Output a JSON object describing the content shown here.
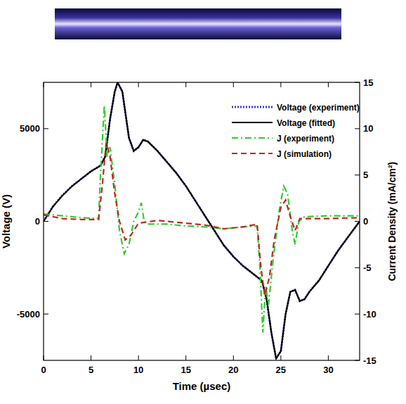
{
  "chart_data": {
    "type": "line",
    "x_label": "Time (µsec)",
    "y_label": "Voltage (V)",
    "y2_label": "Current Density (mA/cm²)",
    "xlim": [
      0,
      33.3
    ],
    "xticks": [
      0,
      5,
      10,
      15,
      20,
      25,
      30
    ],
    "ylim": [
      -7500,
      7500
    ],
    "yticks": [
      -5000,
      0,
      5000
    ],
    "y2lim": [
      -15,
      15
    ],
    "y2ticks": [
      -15,
      -10,
      -5,
      0,
      5,
      10,
      15
    ],
    "legend": "upper right",
    "series": [
      {
        "name": "Voltage (experiment)",
        "color": "#3b3bd6",
        "line_style": "dotted",
        "x": [
          0,
          1,
          2,
          3,
          4,
          5,
          6,
          6.5,
          7,
          7.5,
          7.8,
          8.3,
          9,
          9.5,
          10,
          10.5,
          11,
          12,
          13,
          14,
          15,
          16,
          17,
          18,
          19,
          20,
          21,
          22,
          23,
          23.5,
          24,
          24.5,
          25,
          25.5,
          26,
          26.5,
          27,
          27.5,
          28,
          29,
          30,
          31,
          32,
          33.3
        ],
        "values": [
          0,
          820,
          1420,
          1900,
          2300,
          2700,
          3020,
          3500,
          5500,
          7000,
          7500,
          7000,
          4500,
          3800,
          4000,
          4400,
          4300,
          3800,
          3200,
          2600,
          1900,
          1100,
          300,
          -500,
          -1300,
          -1900,
          -2400,
          -2800,
          -3200,
          -4200,
          -6000,
          -7400,
          -7000,
          -5000,
          -3800,
          -3700,
          -4300,
          -4200,
          -3800,
          -3200,
          -2400,
          -1600,
          -900,
          0
        ]
      },
      {
        "name": "Voltage (fitted)",
        "color": "#000000",
        "line_style": "solid",
        "x": [
          0,
          1,
          2,
          3,
          4,
          5,
          6,
          6.5,
          7,
          7.5,
          7.8,
          8.3,
          9,
          9.5,
          10,
          10.5,
          11,
          12,
          13,
          14,
          15,
          16,
          17,
          18,
          19,
          20,
          21,
          22,
          23,
          23.5,
          24,
          24.5,
          25,
          25.5,
          26,
          26.5,
          27,
          27.5,
          28,
          29,
          30,
          31,
          32,
          33.3
        ],
        "values": [
          0,
          800,
          1400,
          1900,
          2300,
          2700,
          3000,
          3500,
          5500,
          7000,
          7500,
          7000,
          4500,
          3800,
          4000,
          4400,
          4300,
          3800,
          3200,
          2600,
          1900,
          1100,
          300,
          -500,
          -1300,
          -1900,
          -2400,
          -2800,
          -3200,
          -4200,
          -6000,
          -7400,
          -7000,
          -5000,
          -3800,
          -3700,
          -4300,
          -4200,
          -3800,
          -3200,
          -2400,
          -1600,
          -900,
          0
        ]
      },
      {
        "name": "J (experiment)",
        "color": "#2ecc2e",
        "line_style": "dashdot",
        "axis": "y2",
        "x": [
          0,
          2,
          4,
          5.8,
          6.0,
          6.4,
          6.7,
          7,
          7.5,
          8,
          8.5,
          9,
          9.5,
          10,
          10.3,
          10.6,
          11,
          13,
          15,
          17,
          19,
          21,
          22.5,
          22.8,
          23.1,
          23.4,
          23.7,
          24.2,
          24.8,
          25.3,
          25.7,
          26.2,
          26.5,
          26.9,
          27.5,
          30,
          33.3
        ],
        "values": [
          0.8,
          0.6,
          0.4,
          0.3,
          5,
          12.5,
          7,
          8,
          4,
          -1,
          -3.5,
          -2.5,
          0,
          1,
          2,
          0,
          -0.3,
          -0.3,
          -0.5,
          -0.6,
          -0.8,
          -0.6,
          -0.5,
          -5,
          -12,
          -7,
          -9,
          -4,
          1,
          3.8,
          3,
          -1,
          -2.5,
          0,
          0.5,
          0.6,
          0.6
        ]
      },
      {
        "name": "J (simulation)",
        "color": "#c0261e",
        "line_style": "dashed",
        "axis": "y2",
        "x": [
          0,
          2,
          4,
          5.8,
          6.2,
          6.6,
          7,
          7.5,
          8,
          8.6,
          9.2,
          10,
          12,
          15,
          17,
          19,
          21,
          22.5,
          22.9,
          23.3,
          23.8,
          24.3,
          25,
          25.5,
          26,
          26.5,
          27,
          30,
          33.3
        ],
        "values": [
          0.7,
          0.3,
          0.2,
          0.2,
          4,
          8.5,
          7,
          3,
          0,
          -2,
          -1.5,
          -0.2,
          0.1,
          -0.2,
          -0.4,
          -0.8,
          -0.6,
          -0.3,
          -5,
          -8,
          -6,
          -2,
          1.5,
          2.3,
          0.5,
          -1,
          0.3,
          0.3,
          0.4
        ]
      }
    ]
  }
}
